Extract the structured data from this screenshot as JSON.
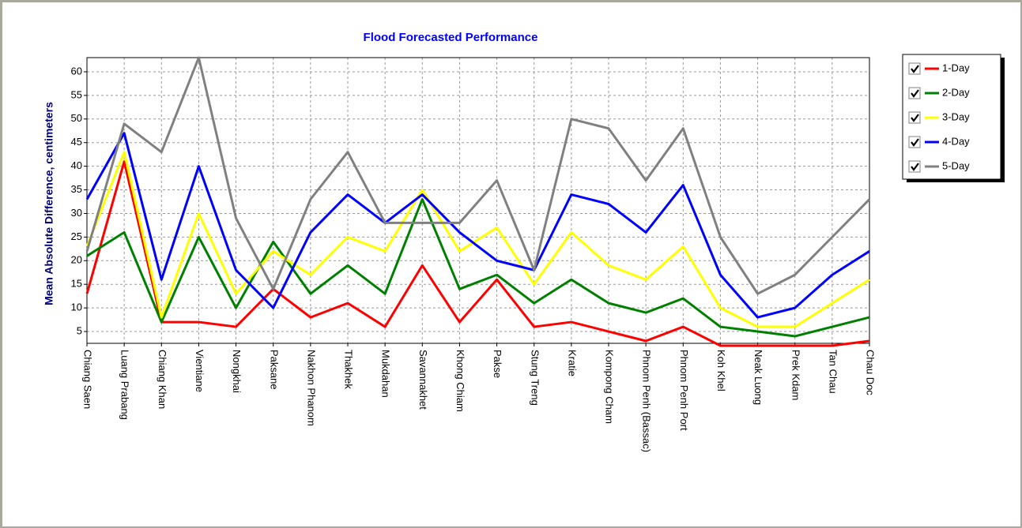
{
  "chart_data": {
    "type": "line",
    "title": "Flood Forecasted Performance",
    "y_label": "Mean Absolute Difference, centimeters",
    "categories": [
      "Chiang Saen",
      "Luang Prabang",
      "Chiang Khan",
      "Vientiane",
      "Nongkhai",
      "Paksane",
      "Nakhon Phanom",
      "Thakhek",
      "Mukdahan",
      "Savannakhet",
      "Khong Chiam",
      "Pakse",
      "Stung Treng",
      "Kratie",
      "Kompong Cham",
      "Phnom Penh (Bassac)",
      "Phnom Penh Port",
      "Koh Khel",
      "Neak Luong",
      "Prek Kdam",
      "Tan Chau",
      "Chau Doc"
    ],
    "series": [
      {
        "name": "1-Day",
        "color": "#ff0000",
        "values": [
          13,
          41,
          7,
          7,
          6,
          14,
          8,
          11,
          6,
          19,
          7,
          16,
          6,
          7,
          5,
          3,
          6,
          2,
          2,
          2,
          2,
          3
        ]
      },
      {
        "name": "2-Day",
        "color": "#008000",
        "values": [
          21,
          26,
          7,
          25,
          10,
          24,
          13,
          19,
          13,
          33,
          14,
          17,
          11,
          16,
          11,
          9,
          12,
          6,
          5,
          4,
          6,
          8
        ]
      },
      {
        "name": "3-Day",
        "color": "#ffff00",
        "values": [
          23,
          43,
          8,
          30,
          13,
          22,
          17,
          25,
          22,
          35,
          22,
          27,
          15,
          26,
          19,
          16,
          23,
          10,
          6,
          6,
          11,
          16
        ]
      },
      {
        "name": "4-Day",
        "color": "#0000ff",
        "values": [
          33,
          47,
          16,
          40,
          18,
          10,
          26,
          34,
          28,
          34,
          26,
          20,
          18,
          34,
          32,
          26,
          36,
          17,
          8,
          10,
          17,
          22
        ]
      },
      {
        "name": "5-Day",
        "color": "#808080",
        "values": [
          22,
          49,
          43,
          63,
          29,
          14,
          33,
          43,
          28,
          28,
          28,
          37,
          18,
          50,
          48,
          37,
          48,
          25,
          13,
          17,
          25,
          33
        ]
      }
    ],
    "ylim": [
      2.5,
      63
    ],
    "yticks": [
      5,
      10,
      15,
      20,
      25,
      30,
      35,
      40,
      45,
      50,
      55,
      60
    ],
    "grid": true
  }
}
